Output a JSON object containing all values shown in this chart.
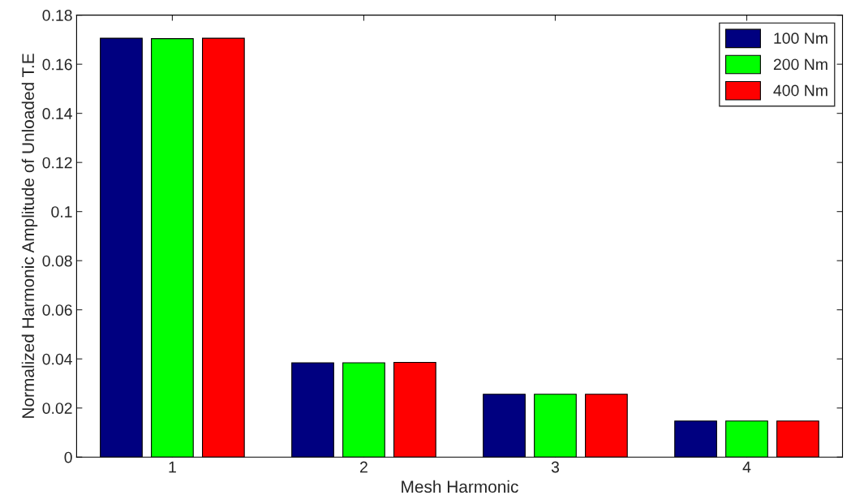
{
  "chart_data": {
    "type": "bar",
    "xlabel": "Mesh Harmonic",
    "ylabel": "Normalized Harmonic Amplitude of Unloaded T.E",
    "categories": [
      "1",
      "2",
      "3",
      "4"
    ],
    "series": [
      {
        "name": "100 Nm",
        "color": "#000080",
        "values": [
          0.1706,
          0.0384,
          0.0256,
          0.0147
        ]
      },
      {
        "name": "200 Nm",
        "color": "#00ff00",
        "values": [
          0.1704,
          0.0384,
          0.0256,
          0.0147
        ]
      },
      {
        "name": "400 Nm",
        "color": "#ff0000",
        "values": [
          0.1706,
          0.0386,
          0.0256,
          0.0147
        ]
      }
    ],
    "ylim": [
      0,
      0.18
    ],
    "yticks": [
      0,
      0.02,
      0.04,
      0.06,
      0.08,
      0.1,
      0.12,
      0.14,
      0.16,
      0.18
    ],
    "grid": false,
    "legend": "top right"
  }
}
